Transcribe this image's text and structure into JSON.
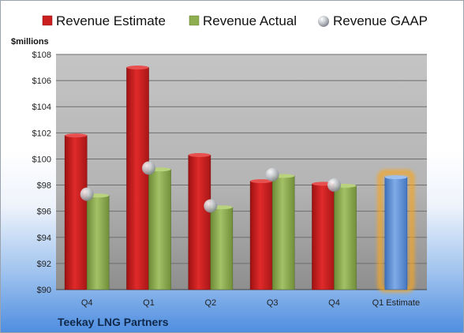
{
  "chart_data": {
    "type": "bar",
    "company": "Teekay LNG Partners",
    "unit_label": "$millions",
    "categories": [
      "Q4",
      "Q1",
      "Q2",
      "Q3",
      "Q4",
      "Q1 Estimate"
    ],
    "series": [
      {
        "name": "Revenue Estimate",
        "color": "#cc1f1f",
        "values": [
          101.8,
          107.0,
          100.3,
          98.3,
          98.1,
          null
        ]
      },
      {
        "name": "Revenue Actual",
        "color": "#8fae4f",
        "values": [
          97.2,
          99.2,
          96.3,
          98.7,
          97.95,
          null
        ]
      },
      {
        "name": "Revenue GAAP",
        "color": "#b9bcc2",
        "marker": "sphere",
        "values": [
          97.3,
          99.3,
          96.4,
          98.8,
          98.0,
          null
        ]
      },
      {
        "name": "",
        "color": "#5b8fd6",
        "values": [
          null,
          null,
          null,
          null,
          null,
          98.6
        ]
      }
    ],
    "highlight_color": "#f5a623",
    "yticks": [
      "$90",
      "$92",
      "$94",
      "$96",
      "$98",
      "$100",
      "$102",
      "$104",
      "$106",
      "$108"
    ],
    "ylim": [
      90,
      108
    ],
    "grid": true,
    "legend": "top"
  }
}
